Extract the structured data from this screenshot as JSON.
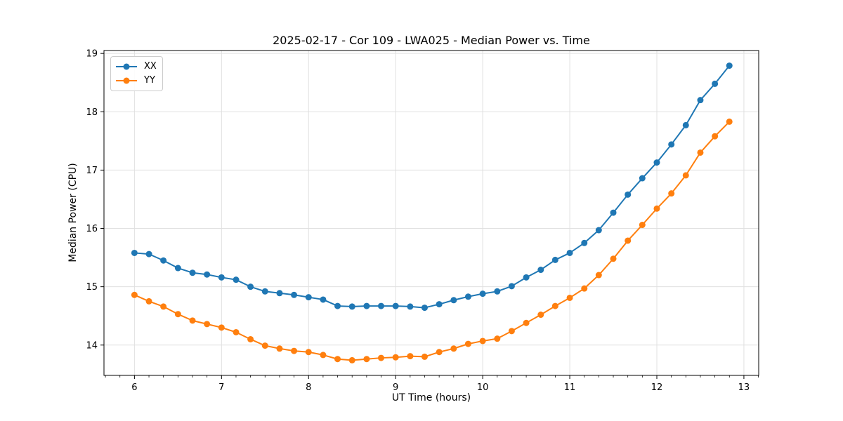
{
  "chart_data": {
    "type": "line",
    "title": "2025-02-17 - Cor 109 - LWA025 - Median Power vs. Time",
    "xlabel": "UT Time (hours)",
    "ylabel": "Median Power (CPU)",
    "xlim": [
      5.65,
      13.17
    ],
    "ylim": [
      13.48,
      19.05
    ],
    "xticks": [
      6,
      7,
      8,
      9,
      10,
      11,
      12,
      13
    ],
    "yticks": [
      14,
      15,
      16,
      17,
      18,
      19
    ],
    "x_minor_tick_step": 0.1667,
    "grid": true,
    "grid_color": "#e0e0e0",
    "spine_color": "#000000",
    "legend_position": "upper left",
    "marker": "o",
    "x": [
      6.0,
      6.167,
      6.333,
      6.5,
      6.667,
      6.833,
      7.0,
      7.167,
      7.333,
      7.5,
      7.667,
      7.833,
      8.0,
      8.167,
      8.333,
      8.5,
      8.667,
      8.833,
      9.0,
      9.167,
      9.333,
      9.5,
      9.667,
      9.833,
      10.0,
      10.167,
      10.333,
      10.5,
      10.667,
      10.833,
      11.0,
      11.167,
      11.333,
      11.5,
      11.667,
      11.833,
      12.0,
      12.167,
      12.333,
      12.5,
      12.667,
      12.833
    ],
    "series": [
      {
        "name": "XX",
        "color": "#1f77b4",
        "values": [
          15.58,
          15.56,
          15.45,
          15.32,
          15.24,
          15.21,
          15.16,
          15.12,
          15.0,
          14.92,
          14.89,
          14.86,
          14.82,
          14.78,
          14.67,
          14.66,
          14.67,
          14.67,
          14.67,
          14.66,
          14.64,
          14.7,
          14.77,
          14.83,
          14.88,
          14.92,
          15.01,
          15.16,
          15.29,
          15.46,
          15.58,
          15.75,
          15.97,
          16.27,
          16.58,
          16.86,
          17.13,
          17.44,
          17.77,
          18.2,
          18.48,
          18.79
        ]
      },
      {
        "name": "YY",
        "color": "#ff7f0e",
        "values": [
          14.86,
          14.75,
          14.66,
          14.53,
          14.42,
          14.36,
          14.3,
          14.22,
          14.1,
          13.99,
          13.94,
          13.9,
          13.88,
          13.83,
          13.76,
          13.74,
          13.76,
          13.78,
          13.79,
          13.81,
          13.8,
          13.88,
          13.94,
          14.02,
          14.07,
          14.11,
          14.24,
          14.38,
          14.52,
          14.67,
          14.81,
          14.97,
          15.2,
          15.48,
          15.79,
          16.06,
          16.34,
          16.6,
          16.91,
          17.3,
          17.58,
          17.83
        ]
      }
    ]
  }
}
